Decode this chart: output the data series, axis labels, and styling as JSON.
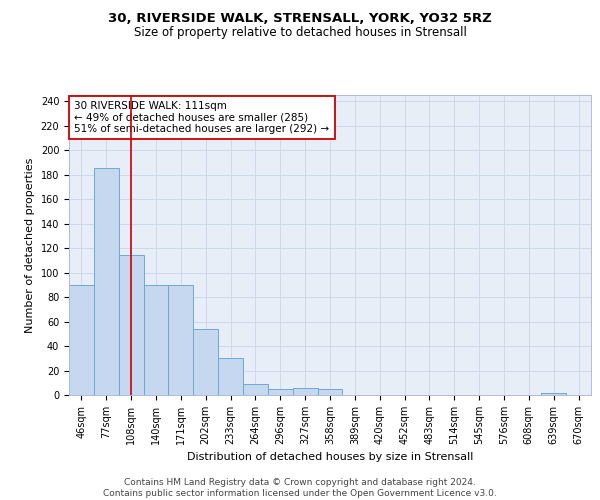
{
  "title_line1": "30, RIVERSIDE WALK, STRENSALL, YORK, YO32 5RZ",
  "title_line2": "Size of property relative to detached houses in Strensall",
  "xlabel": "Distribution of detached houses by size in Strensall",
  "ylabel": "Number of detached properties",
  "bar_labels": [
    "46sqm",
    "77sqm",
    "108sqm",
    "140sqm",
    "171sqm",
    "202sqm",
    "233sqm",
    "264sqm",
    "296sqm",
    "327sqm",
    "358sqm",
    "389sqm",
    "420sqm",
    "452sqm",
    "483sqm",
    "514sqm",
    "545sqm",
    "576sqm",
    "608sqm",
    "639sqm",
    "670sqm"
  ],
  "bar_values": [
    90,
    185,
    114,
    90,
    90,
    54,
    30,
    9,
    5,
    6,
    5,
    0,
    0,
    0,
    0,
    0,
    0,
    0,
    0,
    2,
    0
  ],
  "bar_color": "#c5d8f0",
  "bar_edge_color": "#6aaad4",
  "vline_color": "#cc0000",
  "vline_position": 2.0,
  "annotation_text": "30 RIVERSIDE WALK: 111sqm\n← 49% of detached houses are smaller (285)\n51% of semi-detached houses are larger (292) →",
  "annotation_box_color": "#ffffff",
  "annotation_box_edge": "#cc0000",
  "ylim": [
    0,
    245
  ],
  "yticks": [
    0,
    20,
    40,
    60,
    80,
    100,
    120,
    140,
    160,
    180,
    200,
    220,
    240
  ],
  "bg_color": "#e8eef8",
  "footer_text": "Contains HM Land Registry data © Crown copyright and database right 2024.\nContains public sector information licensed under the Open Government Licence v3.0.",
  "title_fontsize": 9.5,
  "subtitle_fontsize": 8.5,
  "ylabel_fontsize": 8,
  "xlabel_fontsize": 8,
  "tick_fontsize": 7,
  "footer_fontsize": 6.5
}
